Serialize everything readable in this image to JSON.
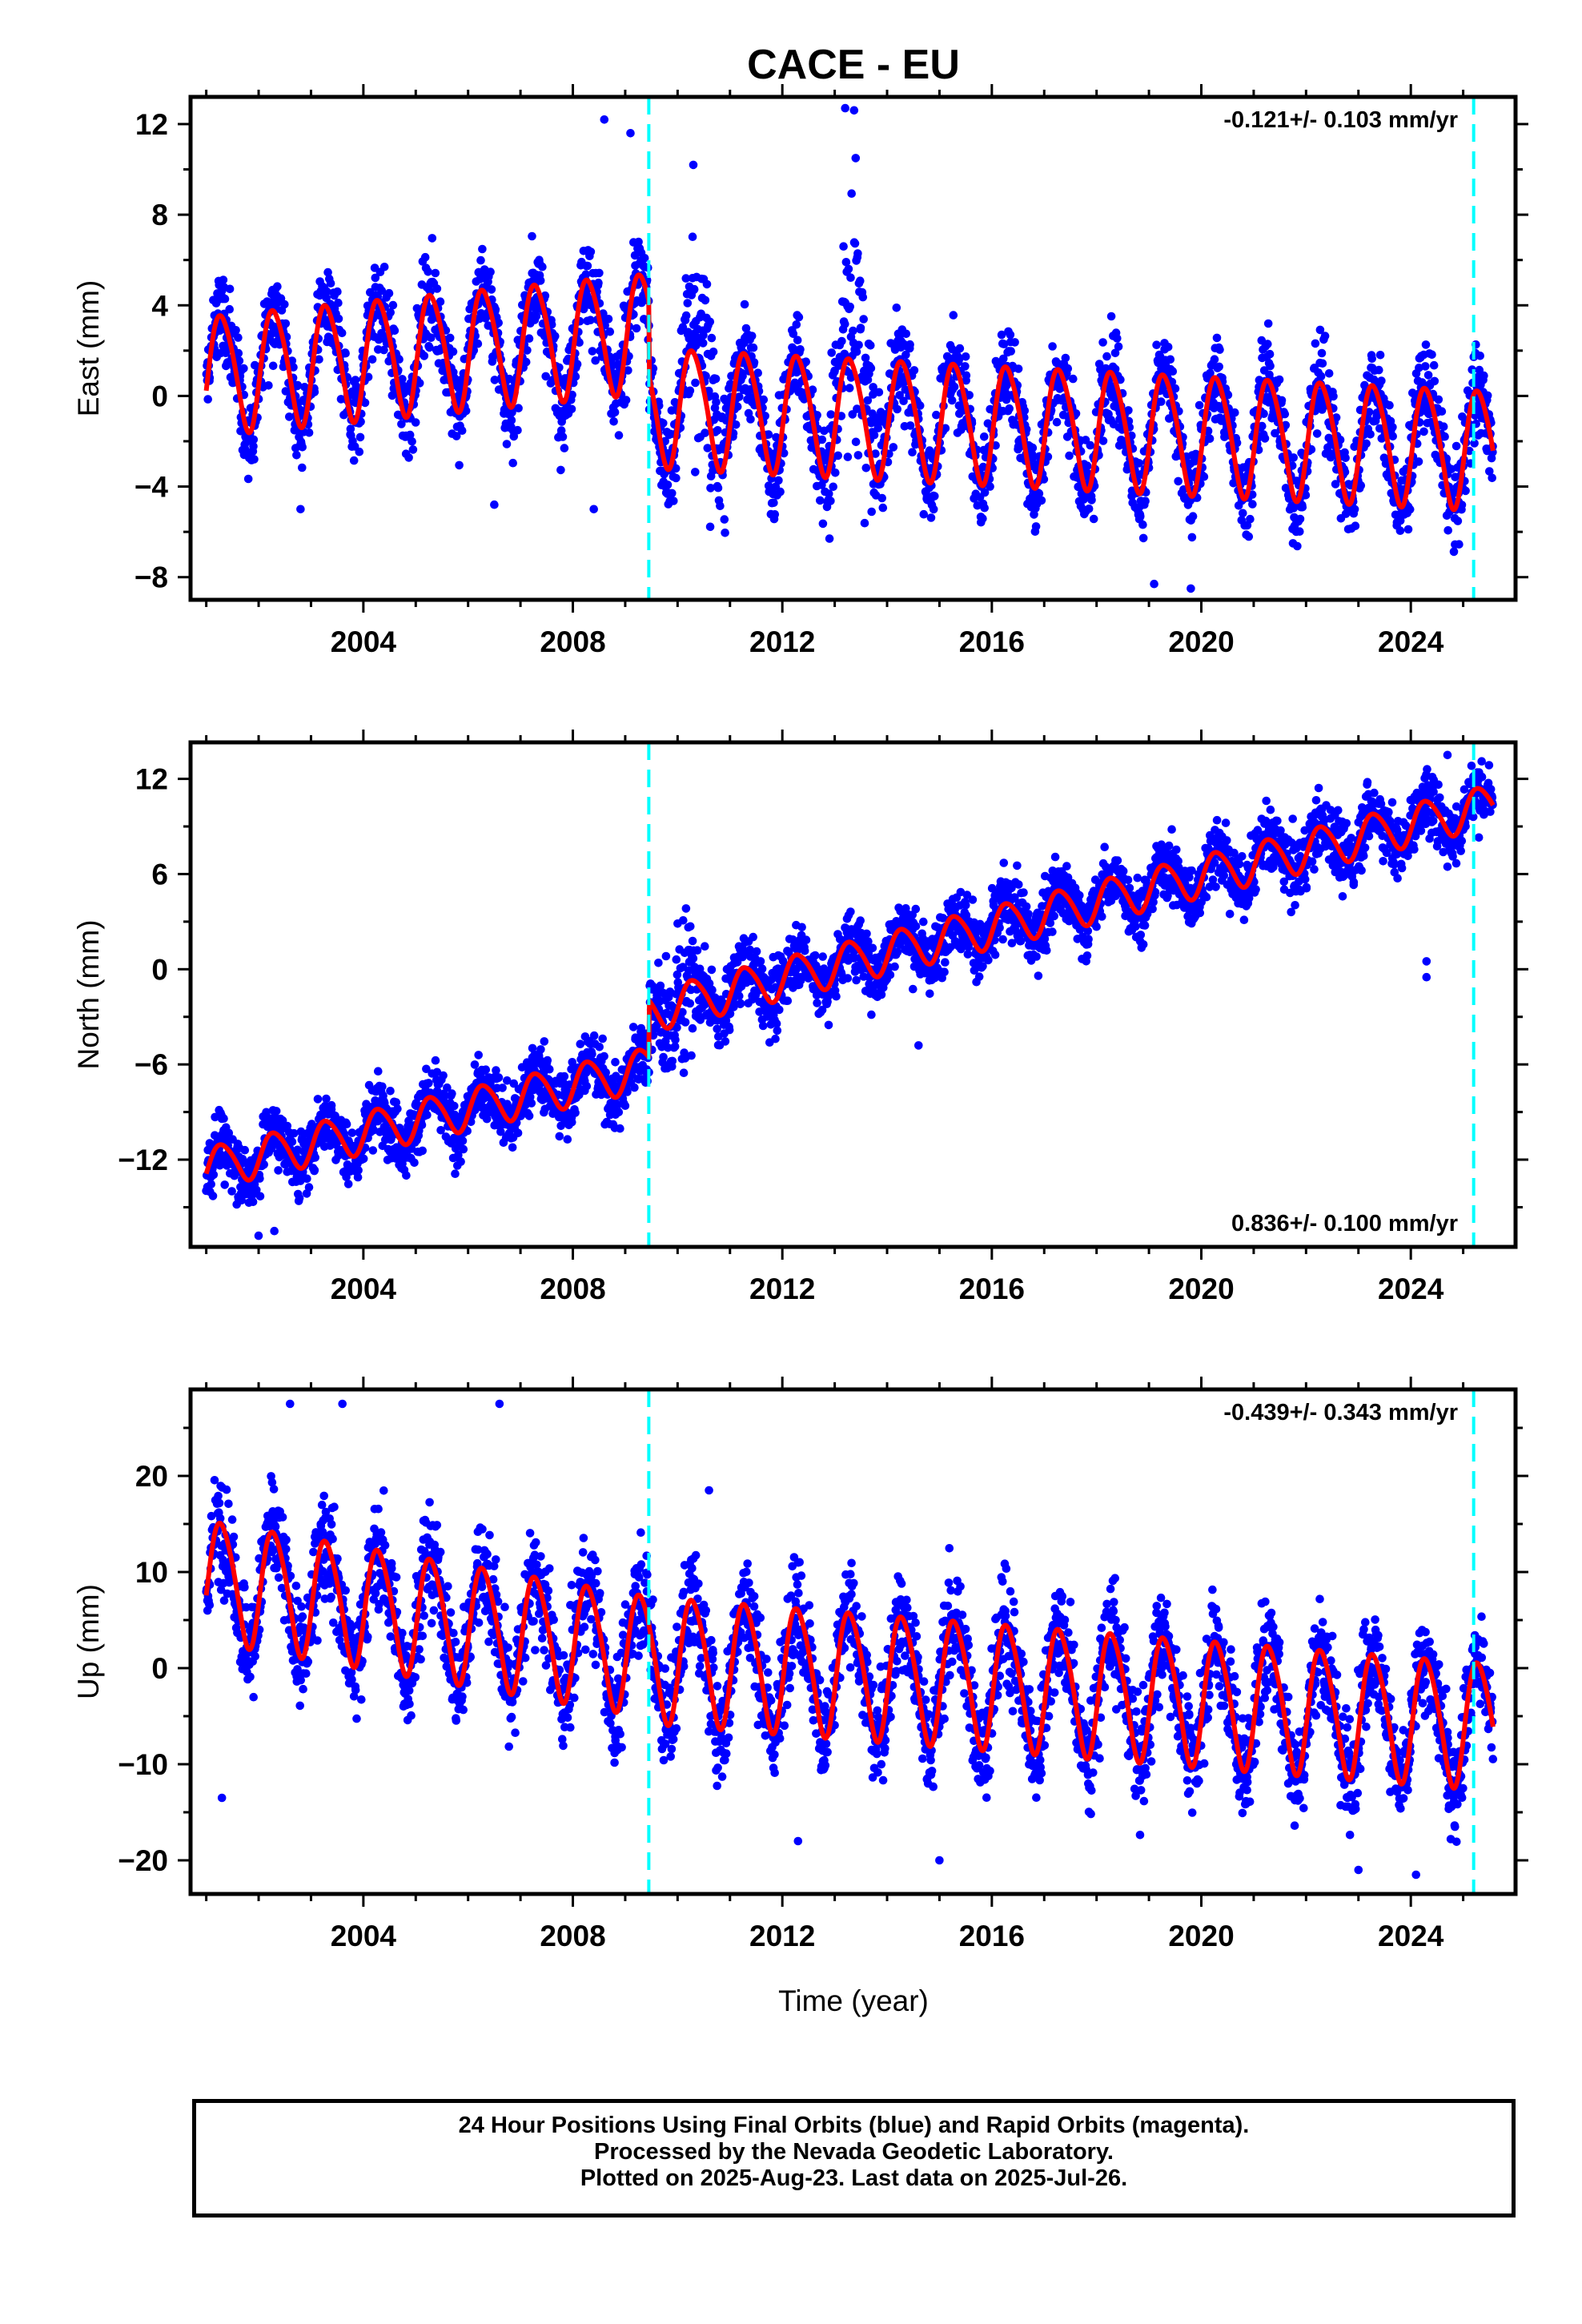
{
  "title": "CACE - EU",
  "xlabel": "Time (year)",
  "caption": {
    "line1": "24 Hour Positions Using Final Orbits (blue) and Rapid Orbits (magenta).",
    "line2": "Processed by the Nevada Geodetic Laboratory.",
    "line3": "Plotted on 2025-Aug-23. Last data on 2025-Jul-26."
  },
  "colors": {
    "final_orbits": "#0000ff",
    "fit": "#ff0000",
    "offsets": "#00ffff",
    "frame": "#000000"
  },
  "chart_data": [
    {
      "type": "scatter",
      "ylabel": "East (mm)",
      "rate_label": "-0.121+/- 0.103 mm/yr",
      "rate_position": "top-right",
      "xlim": [
        2000.7,
        2026.0
      ],
      "ylim": [
        -9,
        13.2
      ],
      "xticks": [
        2004,
        2008,
        2012,
        2016,
        2020,
        2024
      ],
      "yticks": [
        -8,
        -4,
        0,
        4,
        8,
        12
      ],
      "offset_lines": [
        2009.45,
        2025.2
      ],
      "data_span": [
        2001.0,
        2025.57
      ],
      "series": [
        {
          "role": "final_orbits_positions",
          "seasonal": {
            "segments": [
              {
                "from": 2001.0,
                "to": 2009.45,
                "amplitude": 2.6
              },
              {
                "from": 2009.45,
                "to": 2025.57,
                "amplitude": 2.6
              }
            ]
          },
          "spread": 1.4,
          "outliers": [
            [
              2008.6,
              12.2
            ],
            [
              2009.1,
              11.6
            ],
            [
              2013.2,
              12.7
            ],
            [
              2010.3,
              10.2
            ],
            [
              2013.4,
              10.5
            ],
            [
              2008.4,
              -5
            ],
            [
              2002.8,
              -5
            ],
            [
              2006.5,
              -4.8
            ],
            [
              2019.1,
              -8.3
            ],
            [
              2019.8,
              -8.5
            ],
            [
              2012.9,
              -6.3
            ]
          ],
          "bursts": [
            {
              "center": 2010.5,
              "width": 0.6,
              "add": 3.5,
              "scatter": 2.5
            },
            {
              "center": 2013.4,
              "width": 0.6,
              "add": 5,
              "scatter": 2.5
            }
          ]
        },
        {
          "role": "fit",
          "knots": [
            [
              2001.0,
              1.0
            ],
            [
              2009.45,
              2.9
            ],
            [
              2009.46,
              -0.4
            ],
            [
              2025.57,
              -2.3
            ]
          ],
          "seasonal": {
            "segments": [
              {
                "from": 2001.0,
                "to": 2009.45,
                "amplitude": 2.6
              },
              {
                "from": 2009.45,
                "to": 2025.57,
                "amplitude": 2.6
              }
            ]
          }
        }
      ]
    },
    {
      "type": "scatter",
      "ylabel": "North (mm)",
      "rate_label": "0.836+/- 0.100 mm/yr",
      "rate_position": "bottom-right",
      "xlim": [
        2000.7,
        2026.0
      ],
      "ylim": [
        -17.5,
        14.3
      ],
      "xticks": [
        2004,
        2008,
        2012,
        2016,
        2020,
        2024
      ],
      "yticks": [
        -12,
        -6,
        0,
        6,
        12
      ],
      "offset_lines": [
        2009.45,
        2025.2
      ],
      "data_span": [
        2001.0,
        2025.57
      ],
      "series": [
        {
          "role": "final_orbits_positions",
          "seasonal": {
            "segments": [
              {
                "from": 2001.0,
                "to": 2025.57,
                "amplitude": 1.3
              }
            ]
          },
          "spread": 1.4,
          "outliers": [
            [
              2002.0,
              -16.8
            ],
            [
              2002.3,
              -16.5
            ],
            [
              2008.8,
              -10.0
            ],
            [
              2014.6,
              -4.8
            ],
            [
              2024.3,
              0.5
            ],
            [
              2024.3,
              -0.5
            ],
            [
              2024.7,
              13.5
            ]
          ],
          "bursts": [
            {
              "center": 2010.0,
              "width": 0.6,
              "add": 0,
              "scatter": 2.0
            }
          ]
        },
        {
          "role": "fit",
          "knots": [
            [
              2001.0,
              -12.5
            ],
            [
              2009.45,
              -6.2
            ],
            [
              2009.46,
              -2.6
            ],
            [
              2025.57,
              10.4
            ]
          ],
          "seasonal": {
            "segments": [
              {
                "from": 2001.0,
                "to": 2025.57,
                "amplitude": 1.3
              }
            ]
          }
        }
      ]
    },
    {
      "type": "scatter",
      "ylabel": "Up (mm)",
      "rate_label": "-0.439+/- 0.343 mm/yr",
      "rate_position": "top-right",
      "xlim": [
        2000.7,
        2026.0
      ],
      "ylim": [
        -23.5,
        29
      ],
      "xticks": [
        2004,
        2008,
        2012,
        2016,
        2020,
        2024
      ],
      "yticks": [
        -20,
        -10,
        0,
        10,
        20
      ],
      "offset_lines": [
        2009.45,
        2025.2
      ],
      "data_span": [
        2001.0,
        2025.57
      ],
      "series": [
        {
          "role": "final_orbits_positions",
          "seasonal": {
            "segments": [
              {
                "from": 2001.0,
                "to": 2009.45,
                "amplitude": 6.2
              },
              {
                "from": 2009.45,
                "to": 2025.57,
                "amplitude": 6.5
              }
            ]
          },
          "spread": 3.8,
          "outliers": [
            [
              2002.6,
              27.5
            ],
            [
              2003.6,
              27.5
            ],
            [
              2006.6,
              27.5
            ],
            [
              2010.6,
              18.5
            ],
            [
              2023.0,
              -21
            ],
            [
              2024.1,
              -21.5
            ],
            [
              2001.3,
              -13.5
            ],
            [
              2012.3,
              -18
            ],
            [
              2015.0,
              -20
            ]
          ],
          "bursts": []
        },
        {
          "role": "fit",
          "knots": [
            [
              2001.0,
              9.4
            ],
            [
              2009.45,
              1.5
            ],
            [
              2009.46,
              1.2
            ],
            [
              2025.57,
              -5.8
            ]
          ],
          "seasonal": {
            "segments": [
              {
                "from": 2001.0,
                "to": 2009.45,
                "amplitude": 6.2
              },
              {
                "from": 2009.45,
                "to": 2025.57,
                "amplitude": 6.5
              }
            ]
          }
        }
      ]
    }
  ]
}
